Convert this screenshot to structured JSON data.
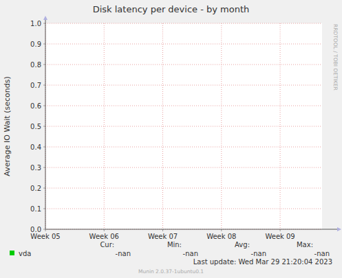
{
  "chart_data": {
    "type": "line",
    "title": "Disk latency per device - by month",
    "y_label": "Average IO Wait (seconds)",
    "watermark": "RRDTOOL / TOBI OETIKER",
    "x": [],
    "xlim": [
      0,
      33
    ],
    "xticks": [
      {
        "value": 0,
        "label": "Week 05"
      },
      {
        "value": 7,
        "label": "Week 06"
      },
      {
        "value": 14,
        "label": "Week 07"
      },
      {
        "value": 21,
        "label": "Week 08"
      },
      {
        "value": 28,
        "label": "Week 09"
      }
    ],
    "ylim": [
      0,
      1
    ],
    "yticks": [
      {
        "value": 0,
        "label": "0.0"
      },
      0.1,
      0.2,
      0.3,
      0.4,
      0.5,
      0.6,
      0.7,
      0.8,
      0.9,
      {
        "value": 1,
        "label": "1.0"
      }
    ],
    "grid": true,
    "legend_columns": [
      "Cur:",
      "Min:",
      "Avg:",
      "Max:"
    ],
    "series": [
      {
        "name": "vda",
        "color": "#00cc00",
        "values": [],
        "stats": [
          "-nan",
          "-nan",
          "-nan",
          "-nan"
        ]
      }
    ],
    "last_update": "Last update: Wed Mar 29 21:20:04 2023",
    "footer": "Munin 2.0.37-1ubuntu0.1"
  }
}
